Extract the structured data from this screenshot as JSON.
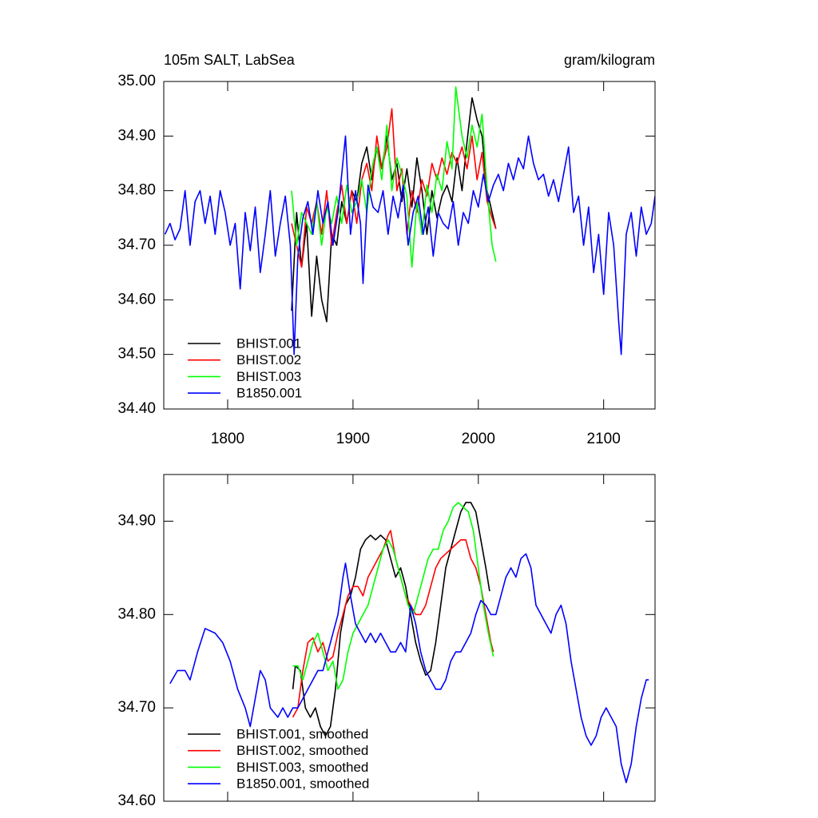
{
  "chart_data": [
    {
      "type": "line",
      "title": "105m SALT, LabSea",
      "units": "gram/kilogram",
      "xlim": [
        1749,
        2141
      ],
      "xticks": [
        1800,
        1900,
        2000,
        2100
      ],
      "show_xtick_labels": true,
      "ylim": [
        34.4,
        35.0
      ],
      "yticks": [
        {
          "value": 34.4,
          "label": "34.40"
        },
        {
          "value": 34.5,
          "label": "34.50"
        },
        {
          "value": 34.6,
          "label": "34.60"
        },
        {
          "value": 34.7,
          "label": "34.70"
        },
        {
          "value": 34.8,
          "label": "34.80"
        },
        {
          "value": 34.9,
          "label": "34.90"
        },
        {
          "value": 35.0,
          "label": "35.00"
        }
      ],
      "legend": "bottom-left",
      "series": [
        {
          "name": "BHIST.001",
          "color": "#000000",
          "x": [
            1851,
            1855,
            1859,
            1863,
            1867,
            1871,
            1875,
            1879,
            1883,
            1887,
            1891,
            1895,
            1899,
            1903,
            1907,
            1911,
            1915,
            1919,
            1923,
            1927,
            1931,
            1935,
            1939,
            1943,
            1947,
            1951,
            1955,
            1959,
            1963,
            1967,
            1971,
            1975,
            1979,
            1983,
            1987,
            1991,
            1995,
            1999,
            2003,
            2007,
            2011,
            2014
          ],
          "values": [
            34.58,
            34.76,
            34.66,
            34.74,
            34.57,
            34.68,
            34.6,
            34.56,
            34.72,
            34.7,
            34.78,
            34.74,
            34.8,
            34.78,
            34.85,
            34.88,
            34.82,
            34.88,
            34.84,
            34.9,
            34.82,
            34.85,
            34.78,
            34.84,
            34.77,
            34.86,
            34.8,
            34.72,
            34.8,
            34.75,
            34.79,
            34.81,
            34.78,
            34.86,
            34.8,
            34.89,
            34.97,
            34.93,
            34.9,
            34.8,
            34.76,
            34.73
          ]
        },
        {
          "name": "BHIST.002",
          "color": "#ff0000",
          "x": [
            1851,
            1855,
            1859,
            1863,
            1867,
            1871,
            1875,
            1879,
            1883,
            1887,
            1891,
            1895,
            1899,
            1903,
            1907,
            1911,
            1915,
            1919,
            1923,
            1927,
            1931,
            1935,
            1939,
            1943,
            1947,
            1951,
            1955,
            1959,
            1963,
            1967,
            1971,
            1975,
            1979,
            1983,
            1987,
            1991,
            1995,
            1999,
            2003,
            2007,
            2011,
            2014
          ],
          "values": [
            34.74,
            34.7,
            34.66,
            34.77,
            34.74,
            34.78,
            34.72,
            34.8,
            34.7,
            34.76,
            34.81,
            34.74,
            34.8,
            34.74,
            34.82,
            34.85,
            34.8,
            34.9,
            34.84,
            34.88,
            34.95,
            34.8,
            34.84,
            34.72,
            34.8,
            34.76,
            34.82,
            34.79,
            34.85,
            34.82,
            34.86,
            34.83,
            34.87,
            34.85,
            34.88,
            34.84,
            34.9,
            34.82,
            34.87,
            34.78,
            34.75,
            34.73
          ]
        },
        {
          "name": "BHIST.003",
          "color": "#00ff00",
          "x": [
            1851,
            1855,
            1859,
            1863,
            1867,
            1871,
            1875,
            1879,
            1883,
            1887,
            1891,
            1895,
            1899,
            1903,
            1907,
            1911,
            1915,
            1919,
            1923,
            1927,
            1931,
            1935,
            1939,
            1943,
            1947,
            1951,
            1955,
            1959,
            1963,
            1967,
            1971,
            1975,
            1979,
            1982,
            1987,
            1991,
            1995,
            1999,
            2003,
            2007,
            2011,
            2014
          ],
          "values": [
            34.8,
            34.7,
            34.76,
            34.74,
            34.72,
            34.78,
            34.7,
            34.77,
            34.74,
            34.79,
            34.74,
            34.81,
            34.76,
            34.78,
            34.82,
            34.76,
            34.84,
            34.88,
            34.82,
            34.92,
            34.8,
            34.86,
            34.83,
            34.79,
            34.66,
            34.78,
            34.72,
            34.81,
            34.76,
            34.83,
            34.8,
            34.89,
            34.84,
            34.99,
            34.9,
            34.86,
            34.92,
            34.88,
            34.94,
            34.8,
            34.7,
            34.67
          ]
        },
        {
          "name": "B1850.001",
          "color": "#0000ff",
          "x": [
            1750,
            1754,
            1758,
            1762,
            1766,
            1770,
            1774,
            1778,
            1782,
            1786,
            1790,
            1794,
            1798,
            1802,
            1806,
            1810,
            1814,
            1818,
            1822,
            1826,
            1830,
            1834,
            1838,
            1842,
            1846,
            1850,
            1853,
            1856,
            1860,
            1864,
            1868,
            1872,
            1876,
            1880,
            1884,
            1888,
            1894,
            1898,
            1902,
            1906,
            1908,
            1912,
            1916,
            1920,
            1924,
            1928,
            1932,
            1936,
            1940,
            1944,
            1948,
            1952,
            1956,
            1960,
            1964,
            1968,
            1972,
            1976,
            1980,
            1984,
            1988,
            1992,
            1996,
            2000,
            2004,
            2008,
            2012,
            2016,
            2020,
            2024,
            2028,
            2032,
            2036,
            2040,
            2044,
            2048,
            2052,
            2056,
            2060,
            2064,
            2068,
            2072,
            2076,
            2080,
            2084,
            2088,
            2092,
            2096,
            2100,
            2104,
            2108,
            2112,
            2114,
            2118,
            2122,
            2126,
            2130,
            2134,
            2138,
            2141
          ],
          "values": [
            34.72,
            34.74,
            34.71,
            34.73,
            34.8,
            34.7,
            34.78,
            34.8,
            34.74,
            34.79,
            34.72,
            34.8,
            34.76,
            34.7,
            34.74,
            34.62,
            34.76,
            34.69,
            34.77,
            34.65,
            34.72,
            34.8,
            34.68,
            34.74,
            34.79,
            34.7,
            34.5,
            34.68,
            34.75,
            34.78,
            34.72,
            34.8,
            34.74,
            34.78,
            34.7,
            34.76,
            34.9,
            34.72,
            34.8,
            34.74,
            34.63,
            34.81,
            34.77,
            34.76,
            34.8,
            34.72,
            34.79,
            34.75,
            34.81,
            34.7,
            34.76,
            34.79,
            34.72,
            34.77,
            34.68,
            34.76,
            34.74,
            34.73,
            34.78,
            34.7,
            34.76,
            34.74,
            34.8,
            34.77,
            34.83,
            34.78,
            34.81,
            34.83,
            34.8,
            34.85,
            34.82,
            34.86,
            34.84,
            34.9,
            34.85,
            34.82,
            34.83,
            34.79,
            34.82,
            34.78,
            34.83,
            34.88,
            34.76,
            34.79,
            34.7,
            34.77,
            34.65,
            34.72,
            34.61,
            34.76,
            34.7,
            34.56,
            34.5,
            34.72,
            34.76,
            34.68,
            34.77,
            34.72,
            34.74,
            34.79
          ]
        }
      ]
    },
    {
      "type": "line",
      "xlim": [
        1749,
        2141
      ],
      "xticks": [
        1800,
        1900,
        2000,
        2100
      ],
      "show_xtick_labels": false,
      "ylim": [
        34.6,
        34.95
      ],
      "yticks": [
        {
          "value": 34.6,
          "label": "34.60"
        },
        {
          "value": 34.7,
          "label": "34.70"
        },
        {
          "value": 34.8,
          "label": "34.80"
        },
        {
          "value": 34.9,
          "label": "34.90"
        }
      ],
      "legend": "bottom-left",
      "series": [
        {
          "name": "BHIST.001, smoothed",
          "color": "#000000",
          "x": [
            1852,
            1854,
            1858,
            1862,
            1866,
            1870,
            1874,
            1878,
            1882,
            1886,
            1890,
            1894,
            1898,
            1902,
            1906,
            1910,
            1914,
            1918,
            1922,
            1926,
            1930,
            1934,
            1938,
            1942,
            1946,
            1950,
            1954,
            1958,
            1962,
            1966,
            1970,
            1974,
            1978,
            1982,
            1986,
            1990,
            1994,
            1998,
            2002,
            2006,
            2009
          ],
          "values": [
            34.72,
            34.745,
            34.74,
            34.7,
            34.69,
            34.7,
            34.68,
            34.67,
            34.68,
            34.72,
            34.78,
            34.81,
            34.82,
            34.84,
            34.87,
            34.88,
            34.885,
            34.88,
            34.885,
            34.88,
            34.86,
            34.84,
            34.85,
            34.83,
            34.8,
            34.77,
            34.75,
            34.735,
            34.74,
            34.77,
            34.81,
            34.85,
            34.87,
            34.89,
            34.91,
            34.92,
            34.92,
            34.91,
            34.88,
            34.85,
            34.825
          ]
        },
        {
          "name": "BHIST.002, smoothed",
          "color": "#ff0000",
          "x": [
            1852,
            1856,
            1860,
            1864,
            1868,
            1872,
            1876,
            1880,
            1884,
            1888,
            1892,
            1896,
            1900,
            1904,
            1908,
            1912,
            1916,
            1920,
            1924,
            1928,
            1930,
            1934,
            1938,
            1942,
            1946,
            1950,
            1954,
            1958,
            1962,
            1966,
            1970,
            1974,
            1978,
            1982,
            1986,
            1990,
            1994,
            1998,
            2002,
            2006,
            2010,
            2012
          ],
          "values": [
            34.69,
            34.7,
            34.74,
            34.77,
            34.775,
            34.76,
            34.77,
            34.75,
            34.755,
            34.78,
            34.8,
            34.82,
            34.83,
            34.83,
            34.82,
            34.84,
            34.85,
            34.86,
            34.87,
            34.885,
            34.89,
            34.86,
            34.84,
            34.82,
            34.81,
            34.8,
            34.8,
            34.81,
            34.83,
            34.85,
            34.86,
            34.865,
            34.87,
            34.875,
            34.88,
            34.88,
            34.86,
            34.85,
            34.83,
            34.8,
            34.77,
            34.76
          ]
        },
        {
          "name": "BHIST.003, smoothed",
          "color": "#00ff00",
          "x": [
            1852,
            1856,
            1860,
            1864,
            1868,
            1872,
            1876,
            1880,
            1884,
            1888,
            1892,
            1896,
            1900,
            1904,
            1908,
            1912,
            1916,
            1920,
            1924,
            1928,
            1932,
            1936,
            1940,
            1944,
            1948,
            1952,
            1956,
            1960,
            1964,
            1968,
            1972,
            1976,
            1980,
            1984,
            1988,
            1992,
            1996,
            2000,
            2004,
            2008,
            2012
          ],
          "values": [
            34.745,
            34.745,
            34.73,
            34.75,
            34.77,
            34.78,
            34.76,
            34.74,
            34.75,
            34.72,
            34.73,
            34.76,
            34.78,
            34.79,
            34.8,
            34.81,
            34.83,
            34.85,
            34.87,
            34.88,
            34.87,
            34.85,
            34.83,
            34.81,
            34.8,
            34.82,
            34.84,
            34.86,
            34.87,
            34.87,
            34.89,
            34.9,
            34.915,
            34.92,
            34.915,
            34.91,
            34.89,
            34.85,
            34.81,
            34.78,
            34.755
          ]
        },
        {
          "name": "B1850.001, smoothed",
          "color": "#0000ff",
          "x": [
            1754,
            1760,
            1766,
            1770,
            1776,
            1782,
            1790,
            1796,
            1802,
            1808,
            1814,
            1818,
            1822,
            1826,
            1830,
            1834,
            1840,
            1844,
            1848,
            1852,
            1856,
            1860,
            1864,
            1868,
            1872,
            1876,
            1880,
            1884,
            1888,
            1892,
            1894,
            1898,
            1902,
            1906,
            1910,
            1914,
            1918,
            1922,
            1926,
            1930,
            1934,
            1938,
            1942,
            1946,
            1950,
            1954,
            1958,
            1962,
            1966,
            1970,
            1974,
            1978,
            1982,
            1986,
            1990,
            1994,
            1998,
            2002,
            2006,
            2010,
            2014,
            2018,
            2022,
            2026,
            2030,
            2034,
            2038,
            2042,
            2046,
            2050,
            2054,
            2058,
            2062,
            2066,
            2070,
            2074,
            2078,
            2082,
            2086,
            2090,
            2094,
            2098,
            2102,
            2106,
            2110,
            2114,
            2118,
            2122,
            2126,
            2130,
            2134,
            2136
          ],
          "values": [
            34.726,
            34.74,
            34.74,
            34.73,
            34.76,
            34.785,
            34.78,
            34.77,
            34.75,
            34.72,
            34.7,
            34.68,
            34.71,
            34.74,
            34.73,
            34.7,
            34.69,
            34.7,
            34.69,
            34.7,
            34.7,
            34.71,
            34.72,
            34.73,
            34.74,
            34.74,
            34.76,
            34.78,
            34.8,
            34.84,
            34.855,
            34.82,
            34.79,
            34.78,
            34.77,
            34.78,
            34.77,
            34.78,
            34.77,
            34.76,
            34.76,
            34.77,
            34.76,
            34.81,
            34.79,
            34.76,
            34.74,
            34.73,
            34.72,
            34.72,
            34.73,
            34.75,
            34.76,
            34.76,
            34.77,
            34.78,
            34.8,
            34.815,
            34.81,
            34.8,
            34.8,
            34.82,
            34.84,
            34.85,
            34.84,
            34.86,
            34.865,
            34.85,
            34.81,
            34.8,
            34.79,
            34.78,
            34.8,
            34.81,
            34.79,
            34.75,
            34.72,
            34.69,
            34.67,
            34.66,
            34.67,
            34.69,
            34.7,
            34.69,
            34.68,
            34.64,
            34.62,
            34.64,
            34.68,
            34.71,
            34.73,
            34.73
          ]
        }
      ]
    }
  ]
}
